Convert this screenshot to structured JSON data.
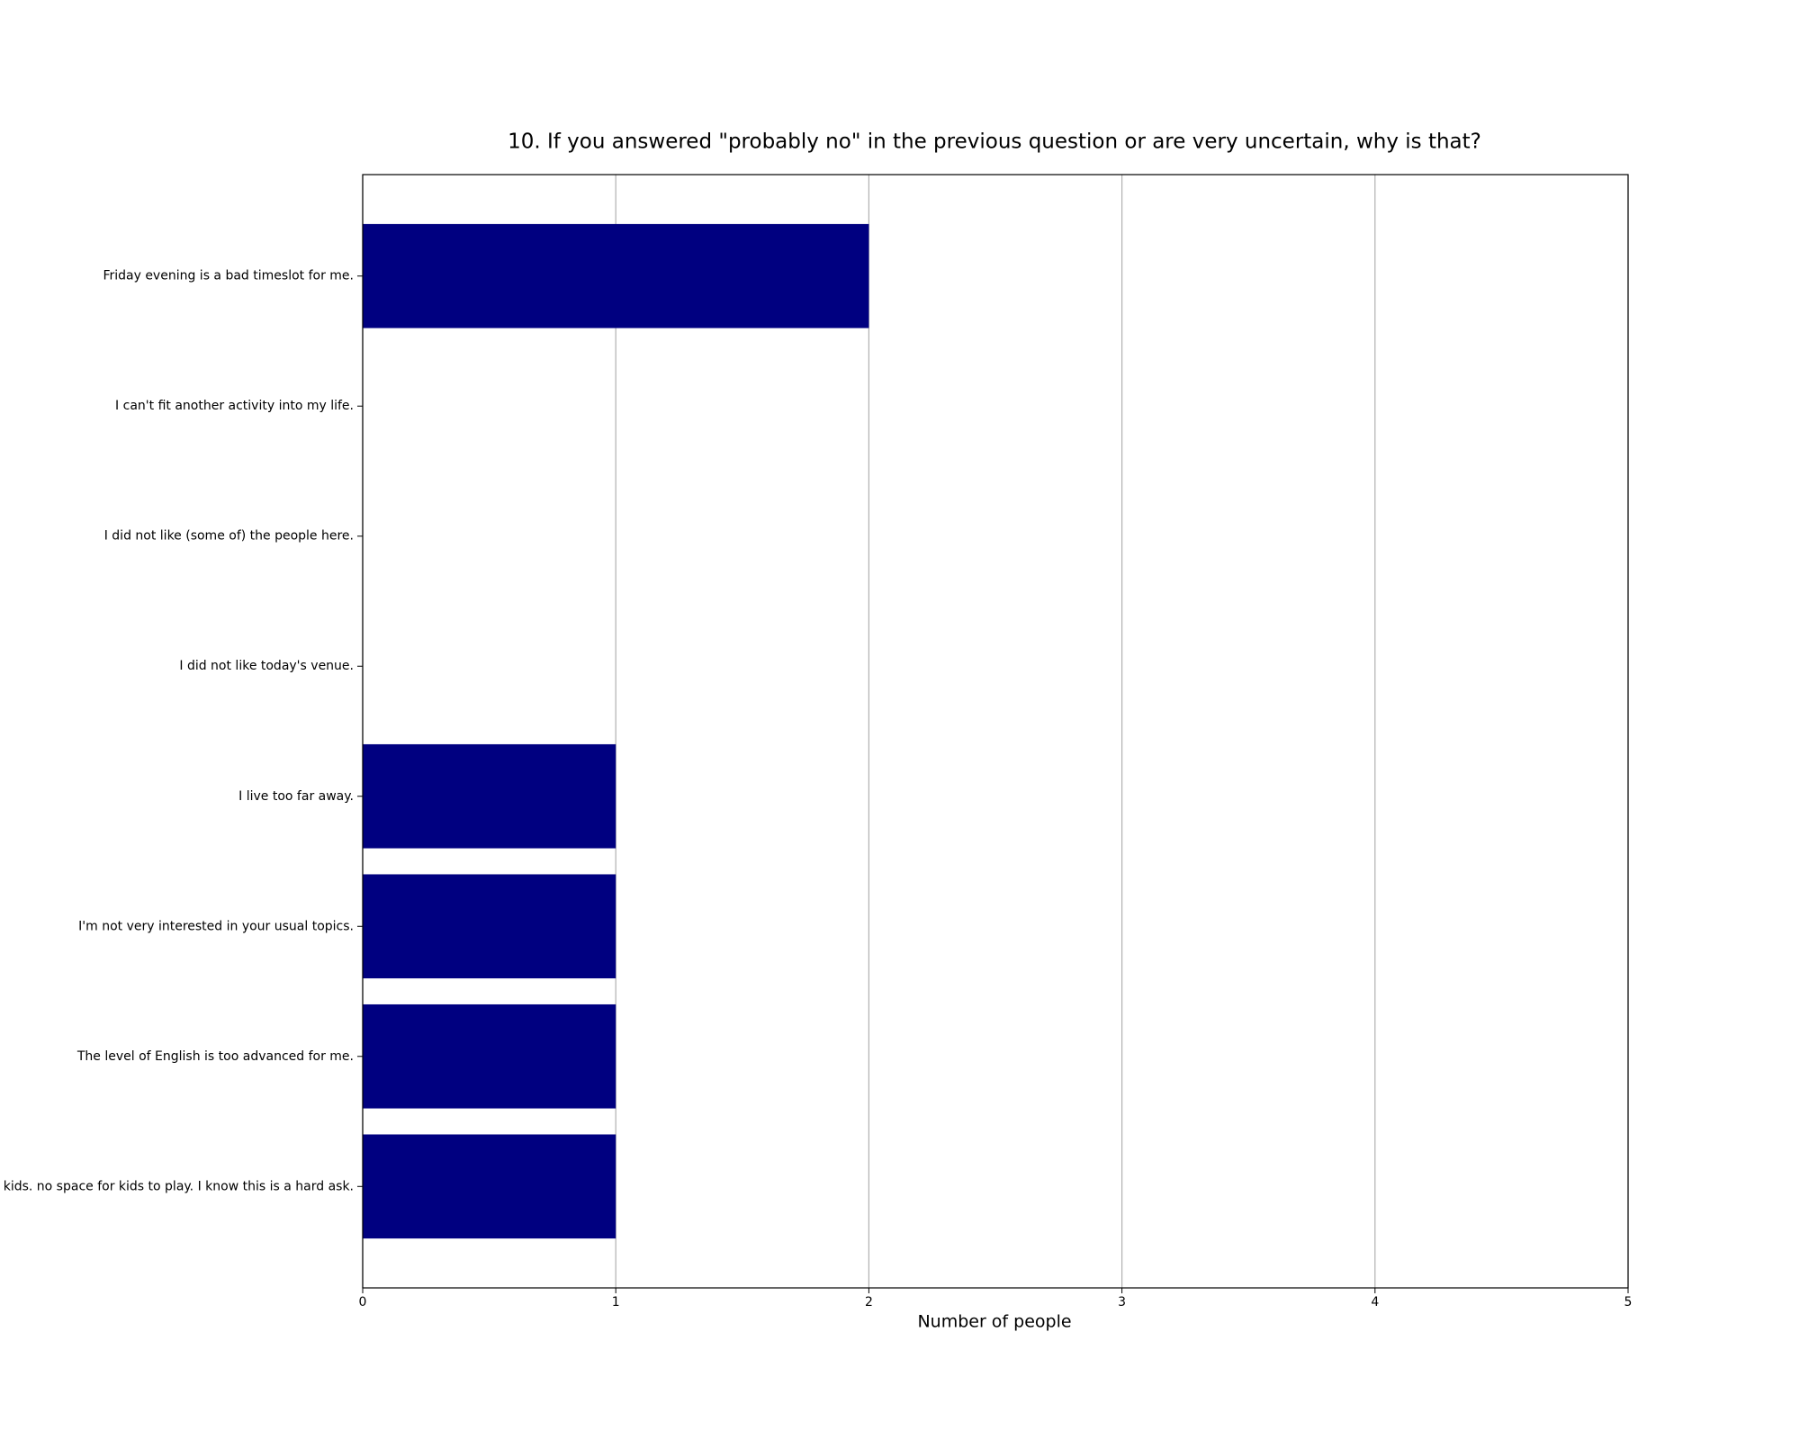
{
  "chart_data": {
    "type": "barh",
    "title": "10. If you answered \"probably no\" in the previous question or are very uncertain, why is that?",
    "xlabel": "Number of people",
    "categories": [
      "Friday evening is a bad timeslot for me.",
      "I can't fit another activity into my life.",
      "I did not like (some of) the people here.",
      "I did not like today's venue.",
      "I live too far away.",
      "I'm not very interested in your usual topics.",
      "The level of English is too advanced for me.",
      "kids. no space for kids to play. I know this is a hard ask."
    ],
    "values": [
      2,
      0,
      0,
      0,
      1,
      1,
      1,
      1
    ],
    "color": "#000080",
    "xlim": [
      0,
      5
    ],
    "xticks": [
      0,
      1,
      2,
      3,
      4,
      5
    ],
    "grid": true
  }
}
